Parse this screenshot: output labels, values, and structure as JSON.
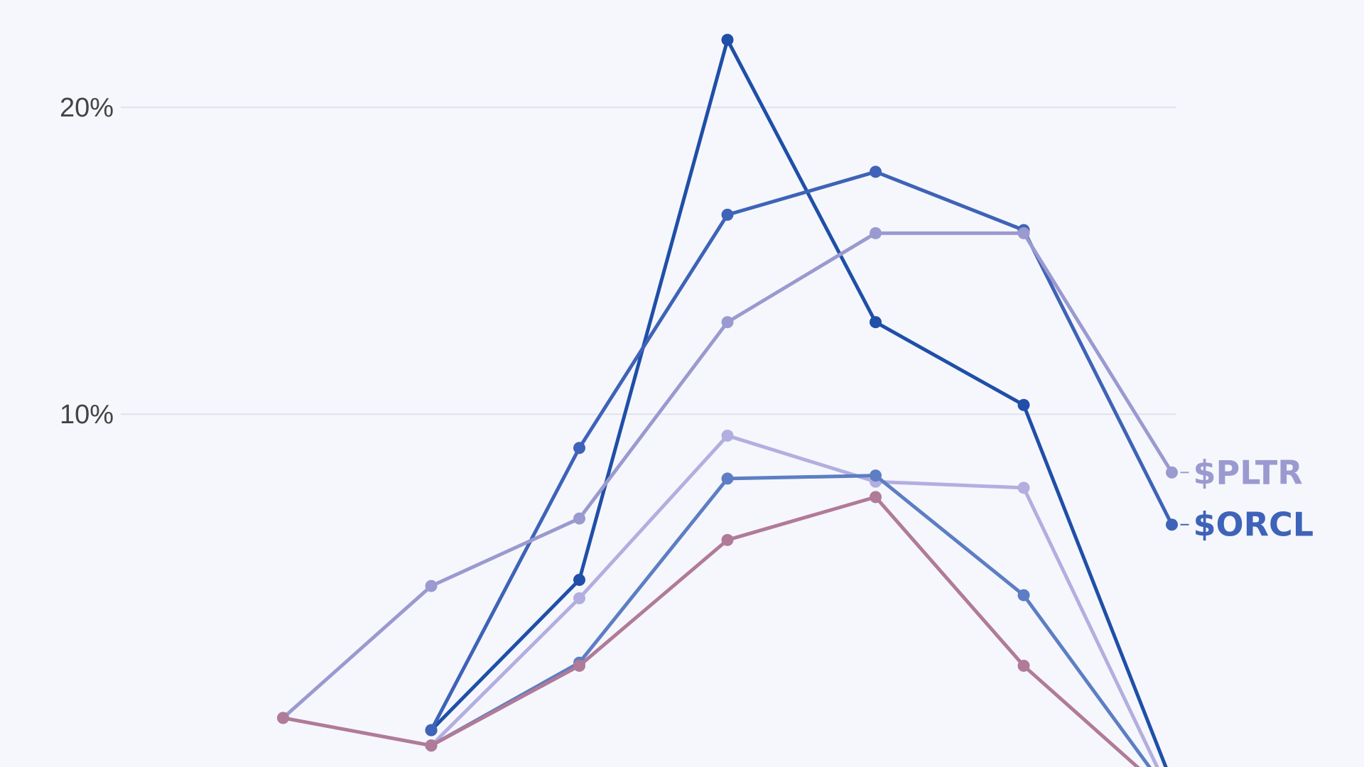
{
  "chart_data": {
    "type": "line",
    "title": "",
    "xlabel": "",
    "ylabel": "",
    "x": [
      0,
      1,
      2,
      3,
      4,
      5,
      6,
      7
    ],
    "ylim": [
      -1.5,
      23.5
    ],
    "yticks": [
      {
        "value": 10,
        "label": "10%"
      },
      {
        "value": 20,
        "label": "20%"
      }
    ],
    "grid": true,
    "legend": "none",
    "series": [
      {
        "name": "",
        "color": "#1f4fa8",
        "values": [
          null,
          null,
          -0.3,
          4.6,
          22.2,
          13.0,
          10.3,
          -2.0
        ]
      },
      {
        "name": "$ORCL",
        "color": "#3e63b8",
        "values": [
          null,
          null,
          -0.3,
          8.9,
          16.5,
          17.9,
          16.0,
          6.4
        ],
        "end_label": "$ORCL"
      },
      {
        "name": "$PLTR",
        "color": "#9a9ad0",
        "values": [
          null,
          0.1,
          4.4,
          6.6,
          13.0,
          15.9,
          15.9,
          8.1
        ],
        "end_label": "$PLTR"
      },
      {
        "name": "",
        "color": "#b3aee0",
        "values": [
          null,
          null,
          -0.8,
          4.0,
          9.3,
          7.8,
          7.6,
          -2.5
        ]
      },
      {
        "name": "",
        "color": "#5d7ec4",
        "values": [
          null,
          null,
          -0.8,
          1.9,
          7.9,
          8.0,
          4.1,
          -2.5
        ]
      },
      {
        "name": "",
        "color": "#b07b98",
        "values": [
          null,
          0.1,
          -0.8,
          1.8,
          5.9,
          7.3,
          1.8,
          -2.5
        ]
      }
    ]
  }
}
